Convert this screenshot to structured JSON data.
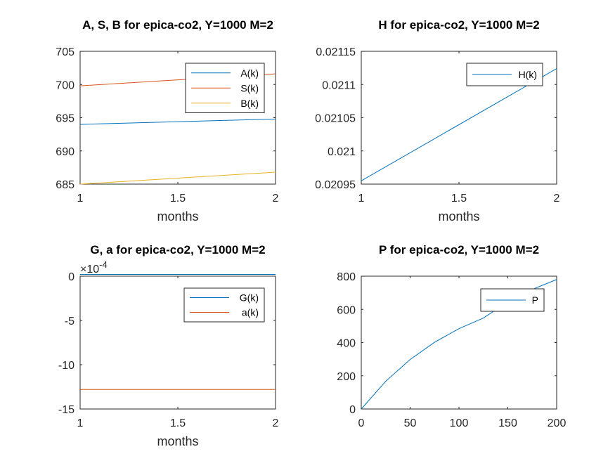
{
  "figure": {
    "background": "#ffffff"
  },
  "chart_data": [
    {
      "type": "line",
      "title": "A, S, B for epica-co2, Y=1000 M=2",
      "xlabel": "months",
      "ylabel": "",
      "xlim": [
        1,
        2
      ],
      "ylim": [
        685,
        705
      ],
      "xticks": [
        1,
        1.5,
        2
      ],
      "yticks": [
        685,
        690,
        695,
        700,
        705
      ],
      "xticklabels": [
        "1",
        "1.5",
        "2"
      ],
      "yticklabels": [
        "685",
        "690",
        "695",
        "700",
        "705"
      ],
      "legend_position": "top-right",
      "series": [
        {
          "name": "A(k)",
          "color": "#0072bd",
          "x": [
            1,
            2
          ],
          "y": [
            694.0,
            694.8
          ]
        },
        {
          "name": "S(k)",
          "color": "#d95319",
          "x": [
            1,
            2
          ],
          "y": [
            699.8,
            701.6
          ]
        },
        {
          "name": "B(k)",
          "color": "#edb120",
          "x": [
            1,
            2
          ],
          "y": [
            685.0,
            686.8
          ]
        }
      ]
    },
    {
      "type": "line",
      "title": "H for epica-co2, Y=1000 M=2",
      "xlabel": "months",
      "ylabel": "",
      "xlim": [
        1,
        2
      ],
      "ylim": [
        0.02095,
        0.02115
      ],
      "xticks": [
        1,
        1.5,
        2
      ],
      "yticks": [
        0.02095,
        0.021,
        0.02105,
        0.0211,
        0.02115
      ],
      "xticklabels": [
        "1",
        "1.5",
        "2"
      ],
      "yticklabels": [
        "0.02095",
        "0.021",
        "0.02105",
        "0.0211",
        "0.02115"
      ],
      "legend_position": "top-right",
      "series": [
        {
          "name": "H(k)",
          "color": "#0072bd",
          "x": [
            1,
            2
          ],
          "y": [
            0.020955,
            0.021124
          ]
        }
      ]
    },
    {
      "type": "line",
      "title": "G, a for epica-co2, Y=1000 M=2",
      "xlabel": "months",
      "ylabel": "",
      "exponent_label": "×10",
      "exponent_power": "-4",
      "xlim": [
        1,
        2
      ],
      "ylim": [
        -15,
        0
      ],
      "xticks": [
        1,
        1.5,
        2
      ],
      "yticks": [
        -15,
        -10,
        -5,
        0
      ],
      "xticklabels": [
        "1",
        "1.5",
        "2"
      ],
      "yticklabels": [
        "-15",
        "-10",
        "-5",
        "0"
      ],
      "legend_position": "top-right",
      "series": [
        {
          "name": "G(k)",
          "color": "#0072bd",
          "x": [
            1,
            2
          ],
          "y": [
            0.2,
            0.2
          ]
        },
        {
          "name": "a(k)",
          "color": "#d95319",
          "x": [
            1,
            2
          ],
          "y": [
            -12.8,
            -12.8
          ]
        }
      ]
    },
    {
      "type": "line",
      "title": "P for epica-co2, Y=1000 M=2",
      "xlabel": "",
      "ylabel": "",
      "xlim": [
        0,
        200
      ],
      "ylim": [
        0,
        800
      ],
      "xticks": [
        0,
        50,
        100,
        150,
        200
      ],
      "yticks": [
        0,
        200,
        400,
        600,
        800
      ],
      "xticklabels": [
        "0",
        "50",
        "100",
        "150",
        "200"
      ],
      "yticklabels": [
        "0",
        "200",
        "400",
        "600",
        "800"
      ],
      "legend_position": "top-right",
      "series": [
        {
          "name": "P",
          "color": "#0072bd",
          "x": [
            0,
            25,
            50,
            75,
            100,
            125,
            150,
            175,
            200
          ],
          "y": [
            0,
            167,
            298,
            402,
            484,
            548,
            645,
            720,
            780
          ]
        }
      ]
    }
  ]
}
